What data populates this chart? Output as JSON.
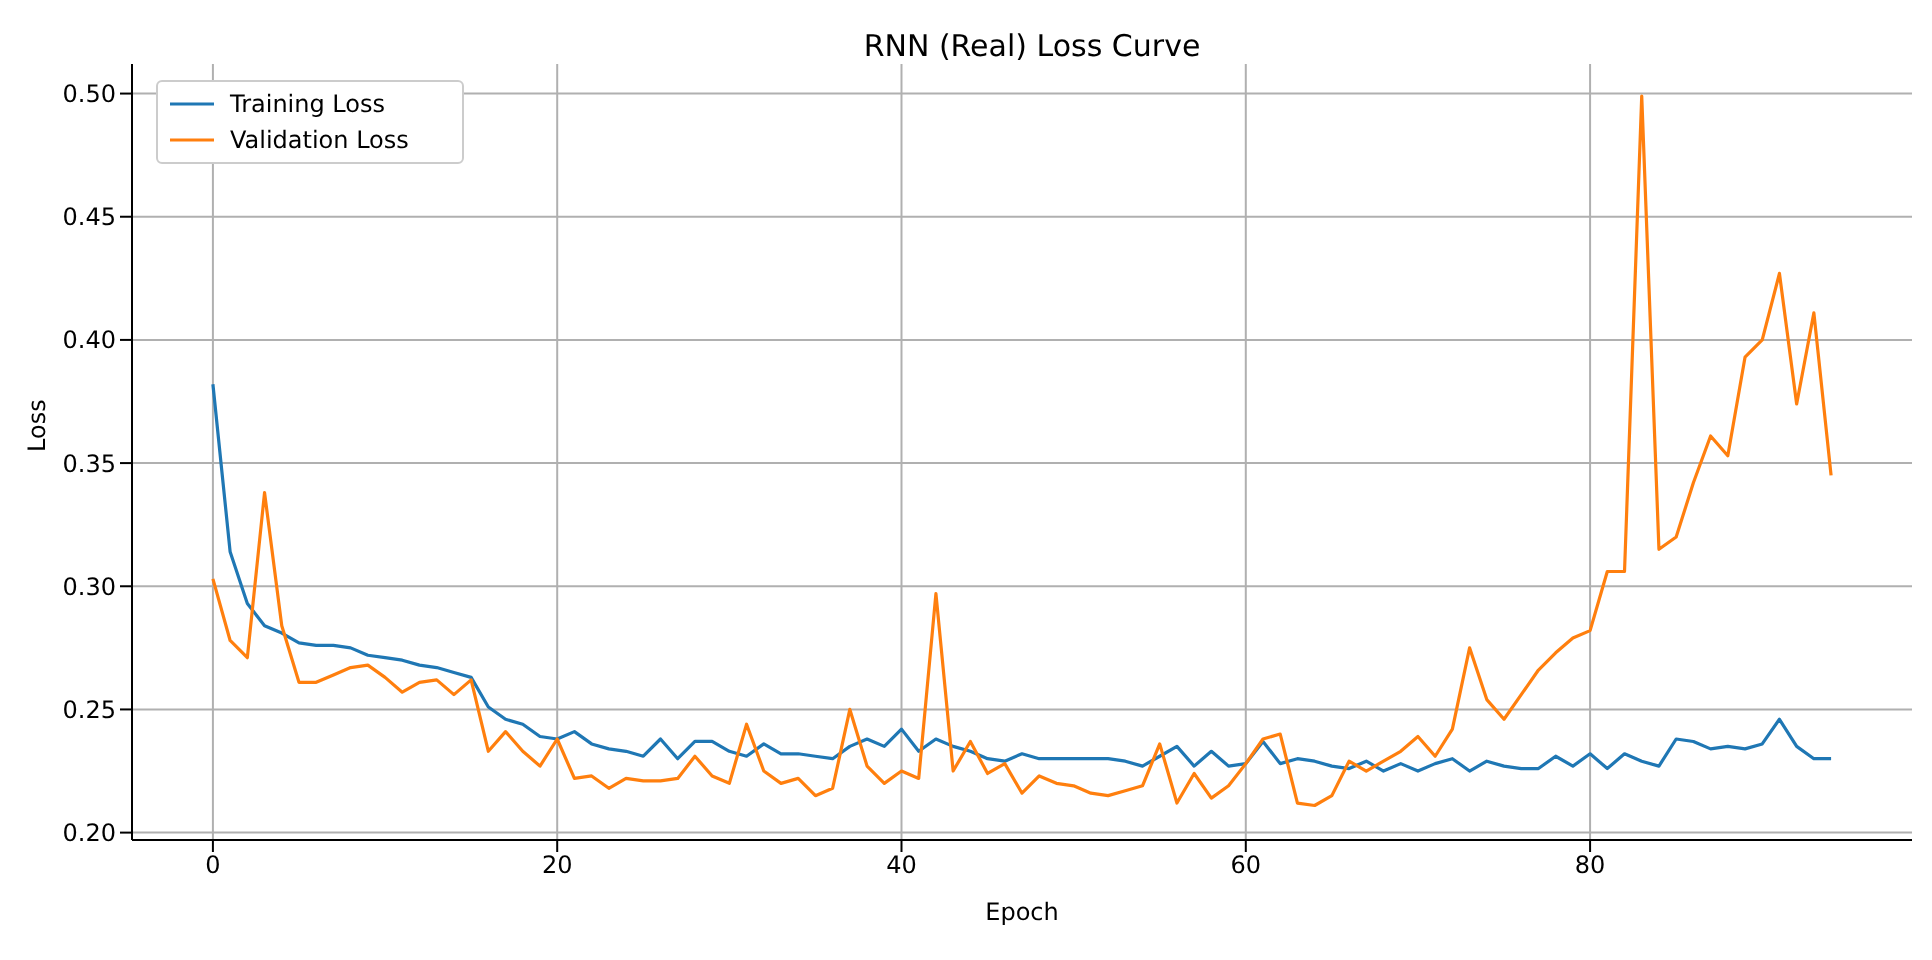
{
  "chart_data": {
    "type": "line",
    "title": "RNN (Real) Loss Curve",
    "xlabel": "Epoch",
    "ylabel": "Loss",
    "x": [
      0,
      1,
      2,
      3,
      4,
      5,
      6,
      7,
      8,
      9,
      10,
      11,
      12,
      13,
      14,
      15,
      16,
      17,
      18,
      19,
      20,
      21,
      22,
      23,
      24,
      25,
      26,
      27,
      28,
      29,
      30,
      31,
      32,
      33,
      34,
      35,
      36,
      37,
      38,
      39,
      40,
      41,
      42,
      43,
      44,
      45,
      46,
      47,
      48,
      49,
      50,
      51,
      52,
      53,
      54,
      55,
      56,
      57,
      58,
      59,
      60,
      61,
      62,
      63,
      64,
      65,
      66,
      67,
      68,
      69,
      70,
      71,
      72,
      73,
      74,
      75,
      76,
      77,
      78,
      79,
      80,
      81,
      82,
      83,
      84,
      85,
      86,
      87,
      88,
      89,
      90,
      91,
      92,
      93,
      94
    ],
    "series": [
      {
        "name": "Training Loss",
        "color": "#1f77b4",
        "values": [
          0.382,
          0.314,
          0.293,
          0.284,
          0.281,
          0.277,
          0.276,
          0.276,
          0.275,
          0.272,
          0.271,
          0.27,
          0.268,
          0.267,
          0.265,
          0.263,
          0.251,
          0.246,
          0.244,
          0.239,
          0.238,
          0.241,
          0.236,
          0.234,
          0.233,
          0.231,
          0.238,
          0.23,
          0.237,
          0.237,
          0.233,
          0.231,
          0.236,
          0.232,
          0.232,
          0.231,
          0.23,
          0.235,
          0.238,
          0.235,
          0.242,
          0.233,
          0.238,
          0.235,
          0.233,
          0.23,
          0.229,
          0.232,
          0.23,
          0.23,
          0.23,
          0.23,
          0.23,
          0.229,
          0.227,
          0.231,
          0.235,
          0.227,
          0.233,
          0.227,
          0.228,
          0.237,
          0.228,
          0.23,
          0.229,
          0.227,
          0.226,
          0.229,
          0.225,
          0.228,
          0.225,
          0.228,
          0.23,
          0.225,
          0.229,
          0.227,
          0.226,
          0.226,
          0.231,
          0.227,
          0.232,
          0.226,
          0.232,
          0.229,
          0.227,
          0.238,
          0.237,
          0.234,
          0.235,
          0.234,
          0.236,
          0.246,
          0.235,
          0.23,
          0.23
        ]
      },
      {
        "name": "Validation Loss",
        "color": "#ff7f0e",
        "values": [
          0.303,
          0.278,
          0.271,
          0.338,
          0.284,
          0.261,
          0.261,
          0.264,
          0.267,
          0.268,
          0.263,
          0.257,
          0.261,
          0.262,
          0.256,
          0.262,
          0.233,
          0.241,
          0.233,
          0.227,
          0.238,
          0.222,
          0.223,
          0.218,
          0.222,
          0.221,
          0.221,
          0.222,
          0.231,
          0.223,
          0.22,
          0.244,
          0.225,
          0.22,
          0.222,
          0.215,
          0.218,
          0.25,
          0.227,
          0.22,
          0.225,
          0.222,
          0.297,
          0.225,
          0.237,
          0.224,
          0.228,
          0.216,
          0.223,
          0.22,
          0.219,
          0.216,
          0.215,
          0.217,
          0.219,
          0.236,
          0.212,
          0.224,
          0.214,
          0.219,
          0.228,
          0.238,
          0.24,
          0.212,
          0.211,
          0.215,
          0.229,
          0.225,
          0.229,
          0.233,
          0.239,
          0.231,
          0.242,
          0.275,
          0.254,
          0.246,
          0.256,
          0.266,
          0.273,
          0.279,
          0.282,
          0.306,
          0.306,
          0.499,
          0.315,
          0.32,
          0.342,
          0.361,
          0.353,
          0.393,
          0.4,
          0.427,
          0.374,
          0.411,
          0.345
        ]
      }
    ],
    "xlim": [
      -4.7,
      98.7
    ],
    "xticks": [
      0,
      20,
      40,
      60,
      80
    ],
    "ylim": [
      0.197,
      0.512
    ],
    "yticks": [
      {
        "value": 0.2,
        "label": "0.20"
      },
      {
        "value": 0.25,
        "label": "0.25"
      },
      {
        "value": 0.3,
        "label": "0.30"
      },
      {
        "value": 0.35,
        "label": "0.35"
      },
      {
        "value": 0.4,
        "label": "0.40"
      },
      {
        "value": 0.45,
        "label": "0.45"
      },
      {
        "value": 0.5,
        "label": "0.50"
      }
    ],
    "grid": true,
    "legend": "top left",
    "marker": "none",
    "line_style": "solid"
  }
}
